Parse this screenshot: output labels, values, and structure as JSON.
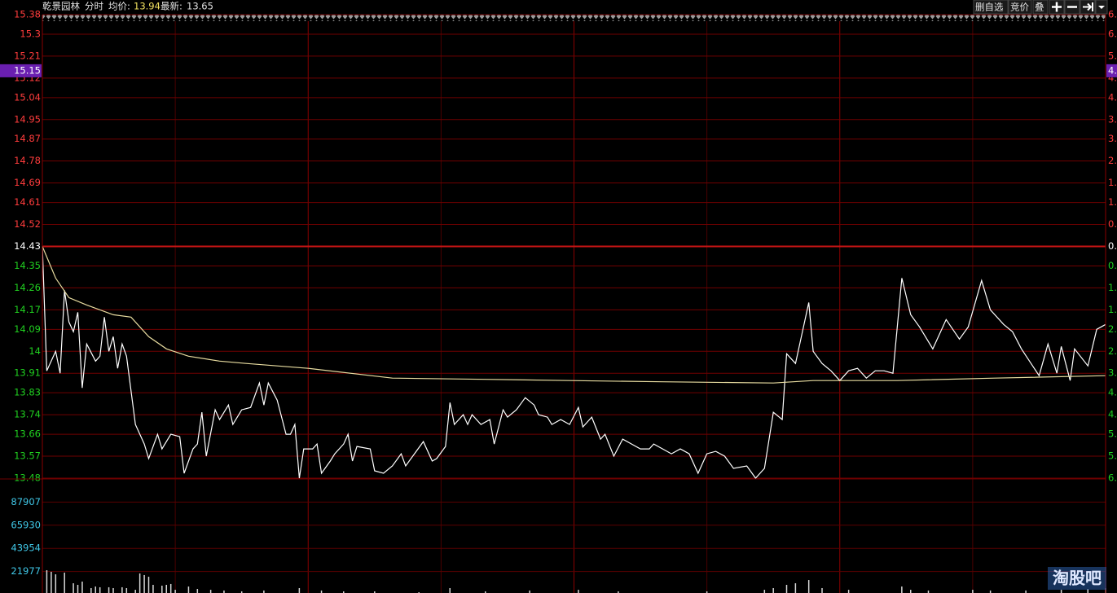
{
  "header": {
    "stock": "乾景园林",
    "mode": "分时",
    "avg_label": "均价:",
    "avg": "13.94",
    "last_label": "最新:",
    "last": "13.65"
  },
  "toolbar": {
    "remove_watch": "删自选",
    "auction": "竞价",
    "overlay": "叠"
  },
  "watermark": "淘股吧",
  "chart_data": [
    {
      "type": "line",
      "xlim": [
        0,
        240
      ],
      "ylim": [
        13.48,
        15.38
      ],
      "yticks": [
        15.38,
        15.3,
        15.21,
        15.12,
        15.04,
        14.95,
        14.87,
        14.78,
        14.69,
        14.61,
        14.52,
        14.43,
        14.35,
        14.26,
        14.17,
        14.09,
        14.0,
        13.91,
        13.83,
        13.74,
        13.66,
        13.57,
        13.48
      ],
      "right_labels": [
        "6.",
        "6.",
        "5.",
        "4.",
        "4.",
        "3.",
        "3.",
        "2.",
        "1.",
        "1.",
        "0.",
        "0.",
        "0.",
        "1.",
        "1.",
        "2.",
        "2.",
        "3.",
        "4.",
        "4.",
        "5.",
        "5.",
        "6."
      ],
      "cursor": {
        "value": 15.15,
        "label": "15.15"
      },
      "cursor_right": "4.",
      "series": [
        {
          "color": "#ffffff",
          "x": [
            0,
            1,
            3,
            4,
            5,
            6,
            7,
            8,
            9,
            10,
            12,
            13,
            14,
            15,
            16,
            17,
            18,
            19,
            21,
            23,
            24,
            26,
            27,
            29,
            31,
            32,
            34,
            35,
            36,
            37,
            39,
            40,
            42,
            43,
            45,
            47,
            48,
            49,
            50,
            51,
            53,
            55,
            56,
            57,
            58,
            59,
            61,
            62,
            63,
            65,
            66,
            68,
            69,
            70,
            71,
            74,
            75,
            77,
            79,
            81,
            82,
            84,
            86,
            88,
            89,
            91,
            92,
            93,
            95,
            96,
            97,
            99,
            101,
            102,
            104,
            105,
            107,
            109,
            111,
            112,
            114,
            115,
            117,
            119,
            121,
            122,
            124,
            126,
            127,
            129,
            131,
            133,
            135,
            137,
            138,
            140,
            142,
            144,
            146,
            148,
            150,
            152,
            154,
            156,
            159,
            161,
            163,
            165,
            167,
            168,
            170,
            173,
            174,
            176,
            178,
            180,
            182,
            184,
            186,
            188,
            190,
            192,
            194,
            196,
            198,
            201,
            204,
            207,
            209,
            212,
            214,
            217,
            219,
            221,
            225,
            227,
            229,
            230,
            232,
            233,
            236,
            238,
            240
          ],
          "values": [
            14.43,
            13.92,
            14.0,
            13.91,
            14.25,
            14.12,
            14.08,
            14.16,
            13.85,
            14.03,
            13.96,
            13.98,
            14.14,
            14.0,
            14.06,
            13.93,
            14.03,
            13.98,
            13.7,
            13.62,
            13.56,
            13.66,
            13.6,
            13.66,
            13.65,
            13.5,
            13.6,
            13.62,
            13.75,
            13.57,
            13.76,
            13.72,
            13.78,
            13.7,
            13.76,
            13.77,
            13.82,
            13.87,
            13.78,
            13.87,
            13.8,
            13.66,
            13.66,
            13.7,
            13.48,
            13.6,
            13.6,
            13.62,
            13.5,
            13.55,
            13.58,
            13.62,
            13.66,
            13.55,
            13.61,
            13.6,
            13.51,
            13.5,
            13.53,
            13.58,
            13.53,
            13.58,
            13.63,
            13.55,
            13.56,
            13.61,
            13.79,
            13.7,
            13.74,
            13.7,
            13.74,
            13.7,
            13.72,
            13.62,
            13.76,
            13.73,
            13.76,
            13.81,
            13.78,
            13.74,
            13.73,
            13.7,
            13.72,
            13.7,
            13.77,
            13.69,
            13.73,
            13.64,
            13.66,
            13.57,
            13.64,
            13.62,
            13.6,
            13.6,
            13.62,
            13.6,
            13.58,
            13.6,
            13.58,
            13.5,
            13.58,
            13.59,
            13.57,
            13.52,
            13.53,
            13.48,
            13.52,
            13.75,
            13.72,
            13.99,
            13.95,
            14.2,
            14.0,
            13.95,
            13.92,
            13.88,
            13.92,
            13.93,
            13.89,
            13.92,
            13.92,
            13.91,
            14.3,
            14.15,
            14.1,
            14.01,
            14.13,
            14.05,
            14.1,
            14.29,
            14.17,
            14.11,
            14.08,
            14.01,
            13.9,
            14.03,
            13.91,
            14.02,
            13.88,
            14.01,
            13.94,
            14.09,
            14.11
          ]
        },
        {
          "color": "#e8dca0",
          "x": [
            0,
            3,
            6,
            10,
            16,
            20,
            24,
            28,
            33,
            40,
            46,
            60,
            79,
            100,
            119,
            140,
            165,
            174,
            193,
            215,
            240
          ],
          "values": [
            14.43,
            14.3,
            14.22,
            14.19,
            14.15,
            14.14,
            14.06,
            14.01,
            13.98,
            13.96,
            13.95,
            13.93,
            13.89,
            13.885,
            13.88,
            13.875,
            13.87,
            13.88,
            13.88,
            13.89,
            13.9
          ]
        }
      ]
    },
    {
      "type": "bar",
      "xlim": [
        0,
        240
      ],
      "ylim": [
        0,
        109884
      ],
      "yticks": [
        21977,
        43954,
        65930,
        87907
      ],
      "color": "#d8d8d8",
      "x": [
        1,
        2,
        3,
        5,
        7,
        8,
        9,
        11,
        12,
        13,
        15,
        16,
        18,
        19,
        21,
        22,
        23,
        24,
        25,
        27,
        28,
        29,
        30,
        33,
        35,
        38,
        41,
        45,
        50,
        58,
        63,
        68,
        75,
        85,
        92,
        100,
        110,
        121,
        130,
        150,
        163,
        165,
        168,
        170,
        173,
        176,
        182,
        194,
        196,
        200,
        210,
        214,
        222,
        230,
        236,
        240
      ],
      "values": [
        23200,
        21700,
        19300,
        20900,
        10800,
        9300,
        12400,
        6200,
        7700,
        7000,
        7000,
        6200,
        7000,
        6200,
        4600,
        20100,
        18600,
        17000,
        9300,
        8500,
        9300,
        10100,
        4600,
        7700,
        5400,
        4600,
        3900,
        3100,
        3900,
        6200,
        3900,
        3100,
        3100,
        2300,
        6200,
        3100,
        3900,
        4600,
        3100,
        3100,
        4600,
        6200,
        9300,
        10800,
        13900,
        6200,
        4600,
        7700,
        4600,
        3900,
        4600,
        3900,
        3900,
        4600,
        5400,
        6200
      ]
    }
  ]
}
